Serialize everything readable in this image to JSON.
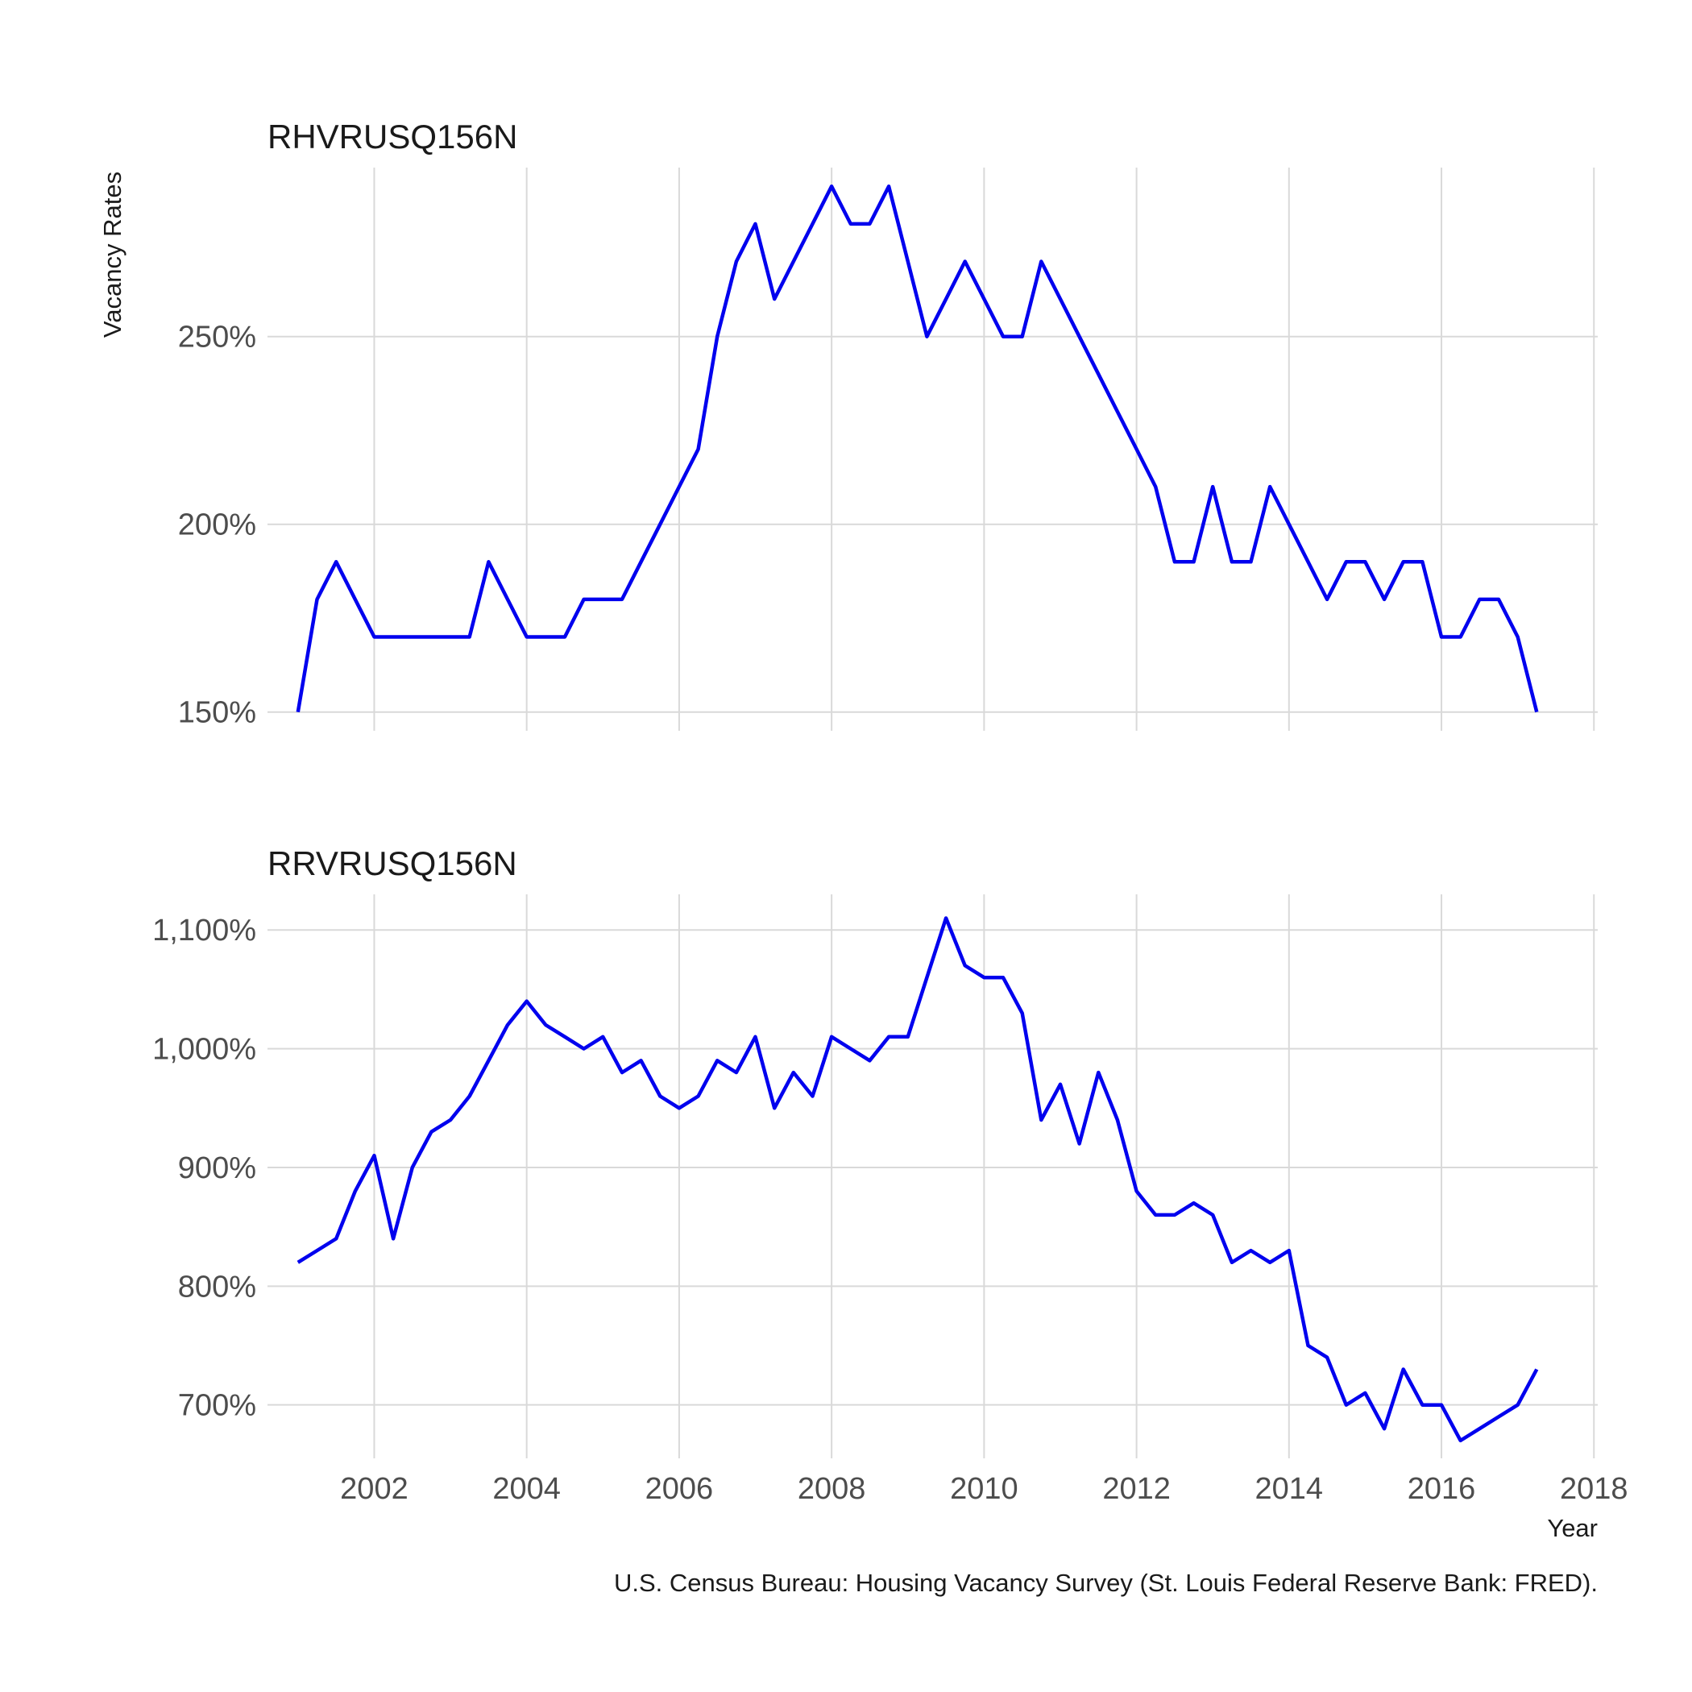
{
  "chart_data": {
    "type": "line",
    "ylabel": "Vacancy Rates",
    "xlabel": "Year",
    "caption": "U.S. Census Bureau: Housing Vacancy Survey (St. Louis Federal Reserve Bank: FRED).",
    "x_ticks": [
      "2002",
      "2004",
      "2006",
      "2008",
      "2010",
      "2012",
      "2014",
      "2016",
      "2018"
    ],
    "xlim": [
      2000.6,
      2018.05
    ],
    "grid": true,
    "line_color": "#0000ee",
    "panels": [
      {
        "title": "RHVRUSQ156N",
        "ylim": [
          145,
          295
        ],
        "y_ticks": [
          150,
          200,
          250
        ],
        "y_tick_labels": [
          "150%",
          "200%",
          "250%"
        ],
        "x": [
          2001.0,
          2001.25,
          2001.5,
          2001.75,
          2002.0,
          2002.25,
          2002.5,
          2002.75,
          2003.0,
          2003.25,
          2003.5,
          2003.75,
          2004.0,
          2004.25,
          2004.5,
          2004.75,
          2005.0,
          2005.25,
          2005.5,
          2005.75,
          2006.0,
          2006.25,
          2006.5,
          2006.75,
          2007.0,
          2007.25,
          2007.5,
          2007.75,
          2008.0,
          2008.25,
          2008.5,
          2008.75,
          2009.0,
          2009.25,
          2009.5,
          2009.75,
          2010.0,
          2010.25,
          2010.5,
          2010.75,
          2011.0,
          2011.25,
          2011.5,
          2011.75,
          2012.0,
          2012.25,
          2012.5,
          2012.75,
          2013.0,
          2013.25,
          2013.5,
          2013.75,
          2014.0,
          2014.25,
          2014.5,
          2014.75,
          2015.0,
          2015.25,
          2015.5,
          2015.75,
          2016.0,
          2016.25,
          2016.5,
          2016.75,
          2017.0,
          2017.25
        ],
        "y": [
          150,
          180,
          190,
          180,
          170,
          170,
          170,
          170,
          170,
          170,
          190,
          180,
          170,
          170,
          170,
          180,
          180,
          180,
          190,
          200,
          210,
          220,
          250,
          270,
          280,
          260,
          270,
          280,
          290,
          280,
          280,
          290,
          270,
          250,
          260,
          270,
          260,
          250,
          250,
          270,
          260,
          250,
          240,
          230,
          220,
          210,
          190,
          190,
          210,
          190,
          190,
          210,
          200,
          190,
          180,
          190,
          190,
          180,
          190,
          190,
          170,
          170,
          180,
          180,
          170,
          150
        ]
      },
      {
        "title": "RRVRUSQ156N",
        "ylim": [
          655,
          1130
        ],
        "y_ticks": [
          700,
          800,
          900,
          1000,
          1100
        ],
        "y_tick_labels": [
          "700%",
          "800%",
          "900%",
          "1,000%",
          "1,100%"
        ],
        "x": [
          2001.0,
          2001.25,
          2001.5,
          2001.75,
          2002.0,
          2002.25,
          2002.5,
          2002.75,
          2003.0,
          2003.25,
          2003.5,
          2003.75,
          2004.0,
          2004.25,
          2004.5,
          2004.75,
          2005.0,
          2005.25,
          2005.5,
          2005.75,
          2006.0,
          2006.25,
          2006.5,
          2006.75,
          2007.0,
          2007.25,
          2007.5,
          2007.75,
          2008.0,
          2008.25,
          2008.5,
          2008.75,
          2009.0,
          2009.25,
          2009.5,
          2009.75,
          2010.0,
          2010.25,
          2010.5,
          2010.75,
          2011.0,
          2011.25,
          2011.5,
          2011.75,
          2012.0,
          2012.25,
          2012.5,
          2012.75,
          2013.0,
          2013.25,
          2013.5,
          2013.75,
          2014.0,
          2014.25,
          2014.5,
          2014.75,
          2015.0,
          2015.25,
          2015.5,
          2015.75,
          2016.0,
          2016.25,
          2016.5,
          2016.75,
          2017.0,
          2017.25
        ],
        "y": [
          820,
          830,
          840,
          880,
          910,
          840,
          900,
          930,
          940,
          960,
          990,
          1020,
          1040,
          1020,
          1010,
          1000,
          1010,
          980,
          990,
          960,
          950,
          960,
          990,
          980,
          1010,
          950,
          980,
          960,
          1010,
          1000,
          990,
          1010,
          1010,
          1060,
          1110,
          1070,
          1060,
          1060,
          1030,
          940,
          970,
          920,
          980,
          940,
          880,
          860,
          860,
          870,
          860,
          820,
          830,
          820,
          830,
          750,
          740,
          700,
          710,
          680,
          730,
          700,
          700,
          670,
          680,
          690,
          700,
          730
        ]
      }
    ]
  }
}
